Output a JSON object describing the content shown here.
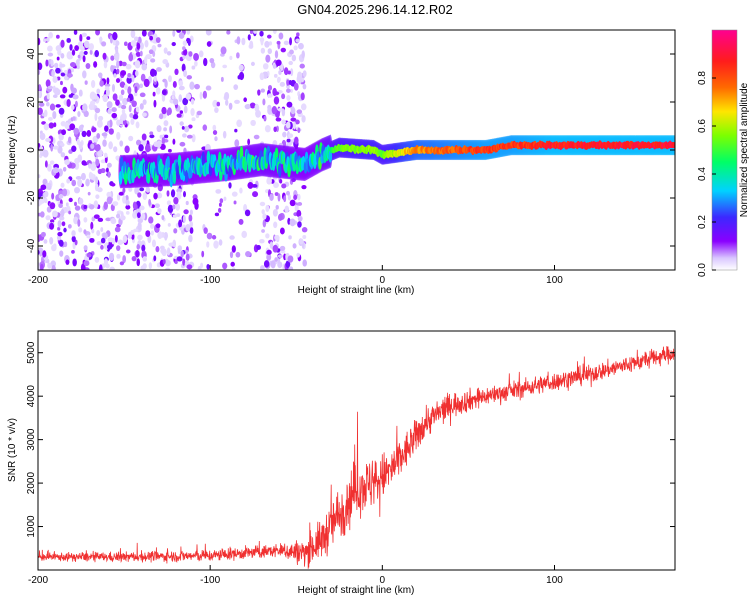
{
  "title": "GN04.2025.296.14.12.R02",
  "chart_data": [
    {
      "type": "heatmap",
      "title": "GN04.2025.296.14.12.R02",
      "xlabel": "Height of straight line (km)",
      "ylabel": "Frequency (Hz)",
      "xlim": [
        -200,
        170
      ],
      "ylim": [
        -50,
        50
      ],
      "xticks": [
        -200,
        -100,
        0,
        100
      ],
      "yticks": [
        -40,
        -20,
        0,
        20,
        40
      ],
      "colorbar": {
        "label": "Normalized spectral amplitude",
        "range": [
          0,
          1
        ],
        "ticks": [
          0.0,
          0.2,
          0.4,
          0.6,
          0.8
        ],
        "tick_labels": [
          "0.0",
          "0.2",
          "0.4",
          "0.6",
          "0.8"
        ],
        "colors": [
          "#ffffff",
          "#8a00ff",
          "#3c28ff",
          "#00d2ff",
          "#00ff66",
          "#7cff00",
          "#ffe600",
          "#ff6a00",
          "#ff1c1c",
          "#ff0090"
        ]
      },
      "ridge": [
        {
          "x": -150,
          "y": -9,
          "amp": 0.35
        },
        {
          "x": -120,
          "y": -8,
          "amp": 0.35
        },
        {
          "x": -90,
          "y": -6,
          "amp": 0.35
        },
        {
          "x": -70,
          "y": -4,
          "amp": 0.4
        },
        {
          "x": -45,
          "y": -6,
          "amp": 0.35
        },
        {
          "x": -35,
          "y": -2,
          "amp": 0.4
        },
        {
          "x": -25,
          "y": 1,
          "amp": 0.55
        },
        {
          "x": -5,
          "y": 0,
          "amp": 0.6
        },
        {
          "x": 0,
          "y": -2,
          "amp": 0.55
        },
        {
          "x": 20,
          "y": 0,
          "amp": 0.75
        },
        {
          "x": 60,
          "y": 0,
          "amp": 0.85
        },
        {
          "x": 75,
          "y": 2,
          "amp": 0.85
        },
        {
          "x": 100,
          "y": 2,
          "amp": 0.9
        },
        {
          "x": 130,
          "y": 2,
          "amp": 0.9
        },
        {
          "x": 170,
          "y": 2,
          "amp": 0.9
        }
      ],
      "noise_region_xlim": [
        -200,
        -45
      ]
    },
    {
      "type": "line",
      "xlabel": "Height of straight line (km)",
      "ylabel": "SNR (10 * v/v)",
      "xlim": [
        -200,
        170
      ],
      "ylim": [
        0,
        5500
      ],
      "xticks": [
        -200,
        -100,
        0,
        100
      ],
      "yticks": [
        1000,
        2000,
        3000,
        4000,
        5000
      ],
      "color": "#f03030",
      "series": [
        {
          "name": "SNR",
          "trend": [
            {
              "x": -200,
              "y": 300
            },
            {
              "x": -150,
              "y": 300
            },
            {
              "x": -100,
              "y": 330
            },
            {
              "x": -60,
              "y": 450
            },
            {
              "x": -45,
              "y": 400
            },
            {
              "x": -35,
              "y": 700
            },
            {
              "x": -25,
              "y": 1300
            },
            {
              "x": -15,
              "y": 1900
            },
            {
              "x": -5,
              "y": 2000
            },
            {
              "x": 5,
              "y": 2300
            },
            {
              "x": 15,
              "y": 2800
            },
            {
              "x": 25,
              "y": 3400
            },
            {
              "x": 40,
              "y": 3800
            },
            {
              "x": 60,
              "y": 4000
            },
            {
              "x": 90,
              "y": 4250
            },
            {
              "x": 120,
              "y": 4500
            },
            {
              "x": 150,
              "y": 4800
            },
            {
              "x": 170,
              "y": 5000
            }
          ],
          "noise": [
            {
              "x": -200,
              "y": 120
            },
            {
              "x": -60,
              "y": 200
            },
            {
              "x": -40,
              "y": 500
            },
            {
              "x": -20,
              "y": 900
            },
            {
              "x": 0,
              "y": 700
            },
            {
              "x": 20,
              "y": 500
            },
            {
              "x": 60,
              "y": 280
            },
            {
              "x": 170,
              "y": 260
            }
          ]
        }
      ]
    }
  ]
}
